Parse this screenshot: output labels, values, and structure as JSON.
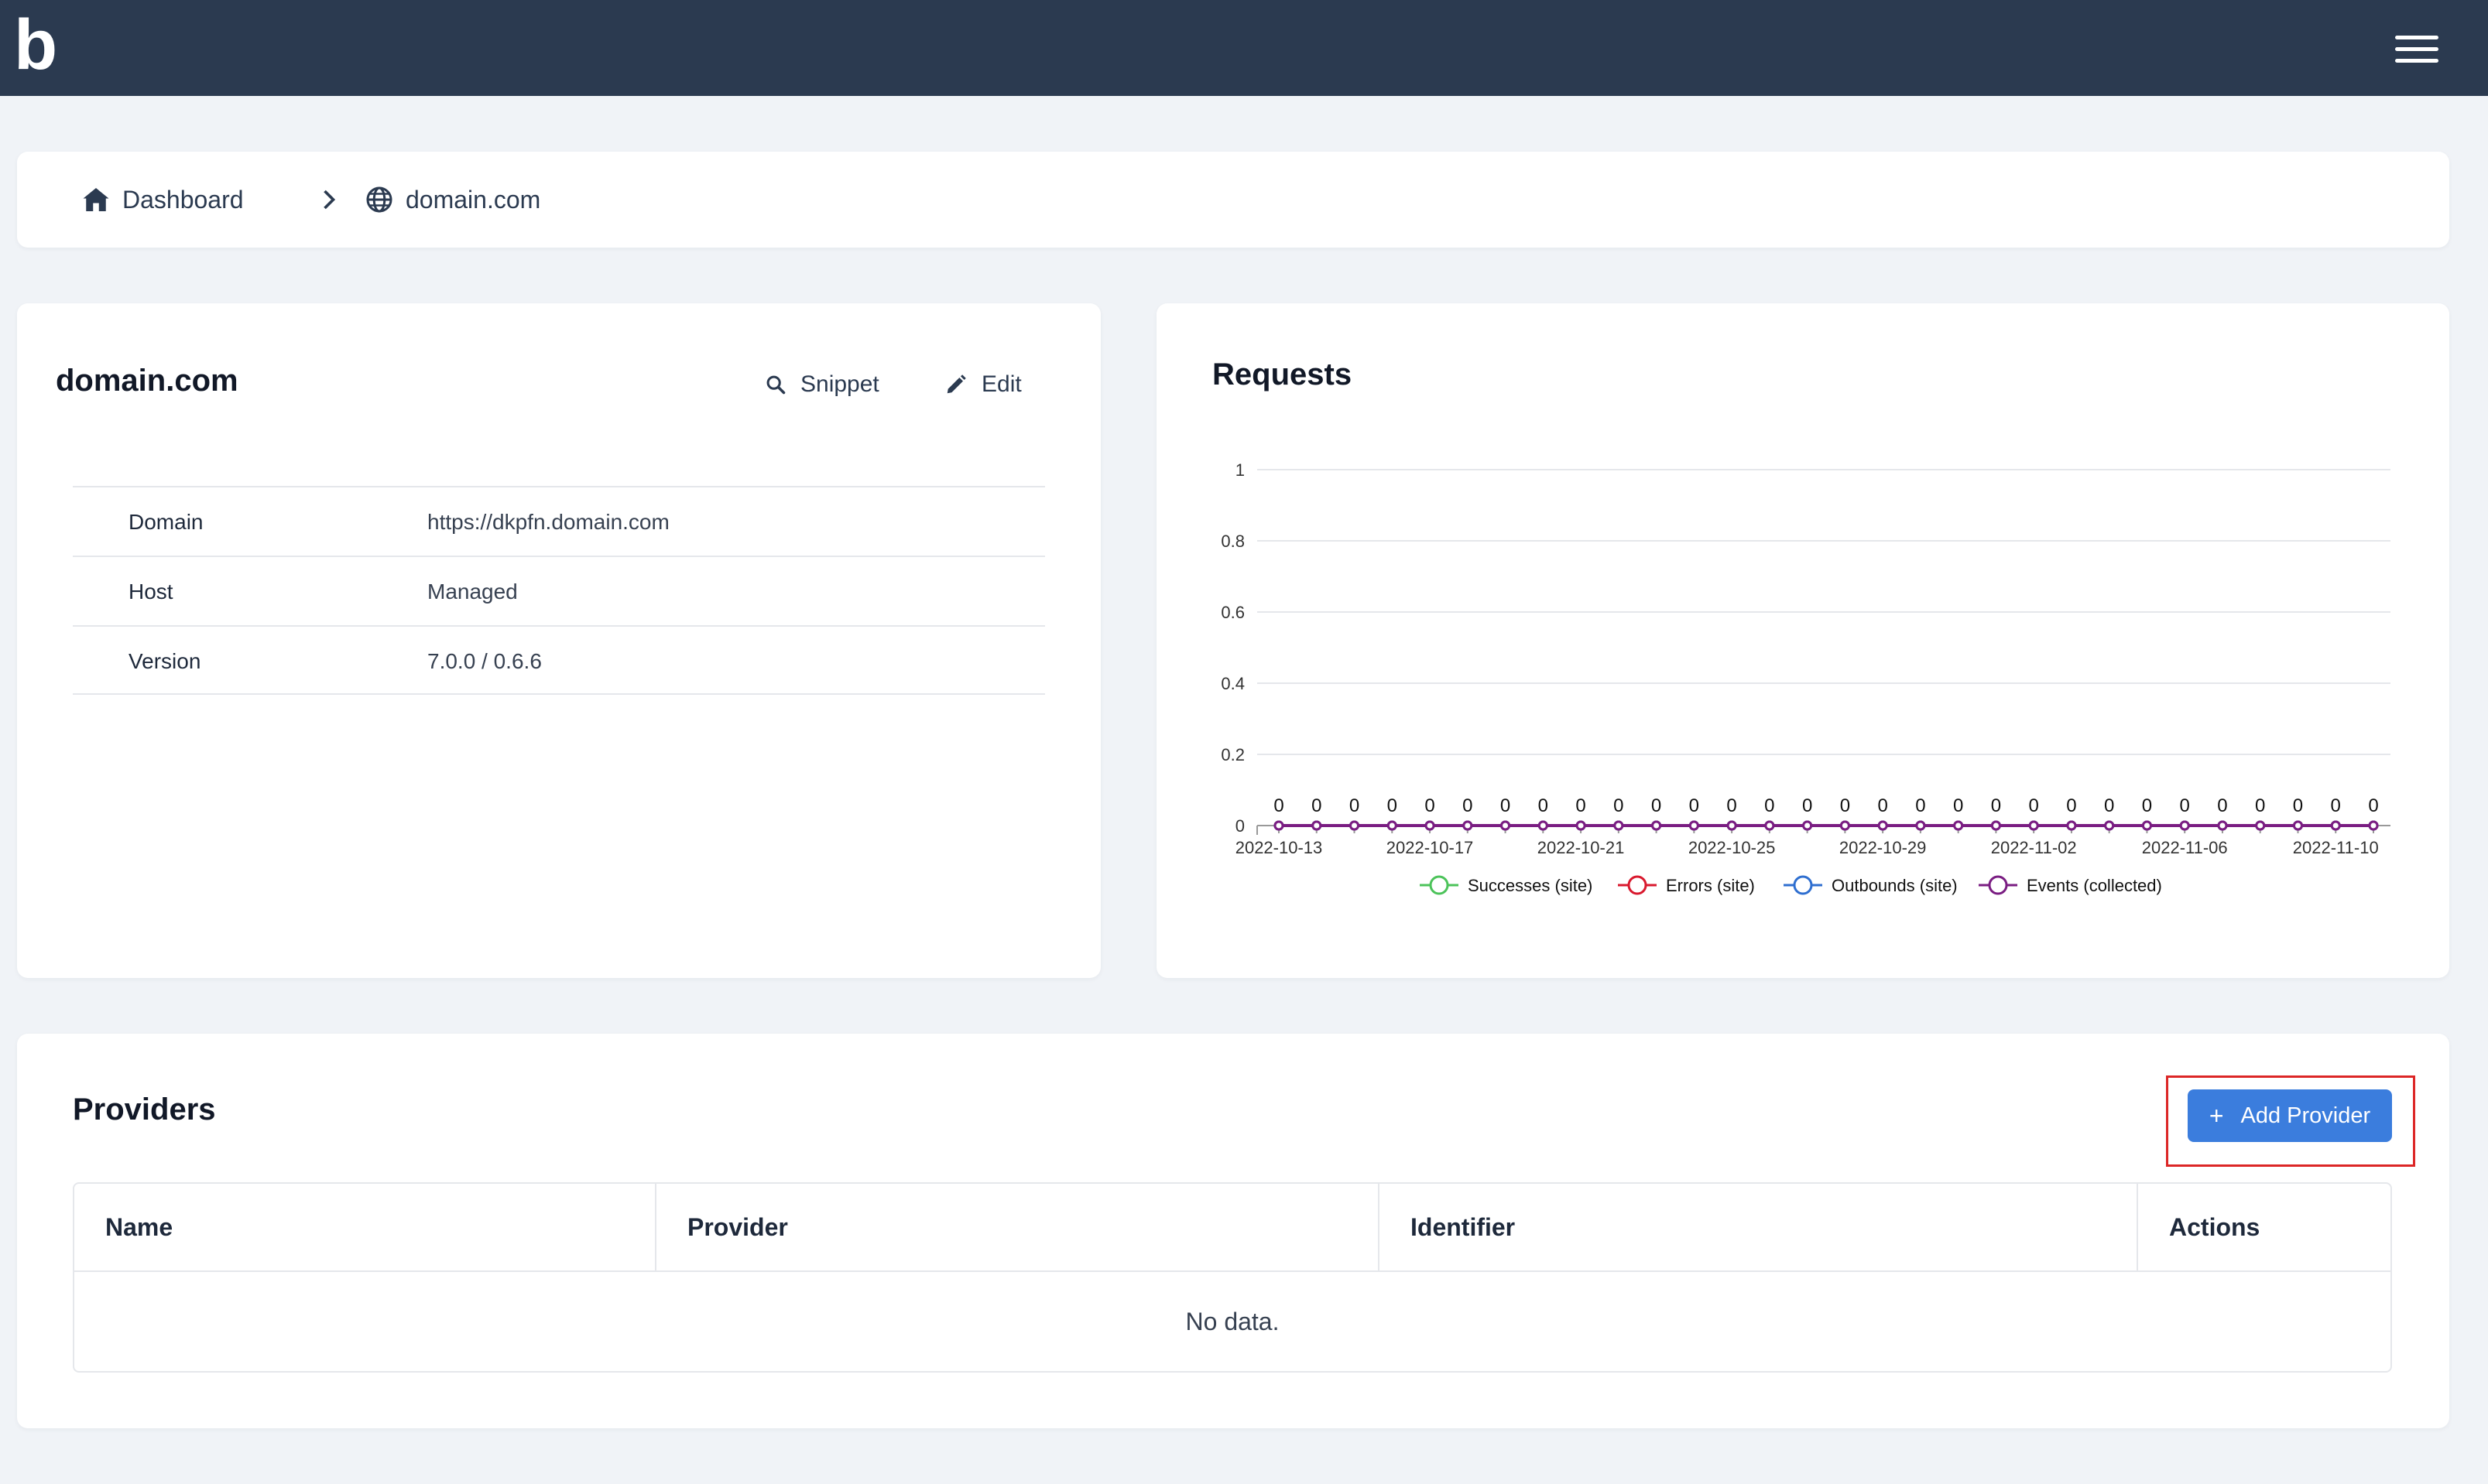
{
  "app": {
    "logo_text": "b",
    "menu_icon": "hamburger-menu-icon"
  },
  "breadcrumb": {
    "items": [
      {
        "label": "Dashboard",
        "icon": "home-icon"
      },
      {
        "label": "domain.com",
        "icon": "globe-icon"
      }
    ],
    "separator_icon": "chevron-right-icon"
  },
  "site": {
    "title": "domain.com",
    "actions": {
      "snippet_label": "Snippet",
      "edit_label": "Edit"
    },
    "rows": [
      {
        "label": "Domain",
        "value": "https://dkpfn.domain.com"
      },
      {
        "label": "Host",
        "value": "Managed"
      },
      {
        "label": "Version",
        "value": "7.0.0 / 0.6.6"
      }
    ]
  },
  "requests": {
    "title": "Requests",
    "chart_data": {
      "type": "line",
      "x": [
        "2022-10-13",
        "2022-10-14",
        "2022-10-15",
        "2022-10-16",
        "2022-10-17",
        "2022-10-18",
        "2022-10-19",
        "2022-10-20",
        "2022-10-21",
        "2022-10-22",
        "2022-10-23",
        "2022-10-24",
        "2022-10-25",
        "2022-10-26",
        "2022-10-27",
        "2022-10-28",
        "2022-10-29",
        "2022-10-30",
        "2022-10-31",
        "2022-11-01",
        "2022-11-02",
        "2022-11-03",
        "2022-11-04",
        "2022-11-05",
        "2022-11-06",
        "2022-11-07",
        "2022-11-08",
        "2022-11-09",
        "2022-11-10",
        "2022-11-11"
      ],
      "x_tick_labels": [
        "2022-10-13",
        "2022-10-17",
        "2022-10-21",
        "2022-10-25",
        "2022-10-29",
        "2022-11-02",
        "2022-11-06",
        "2022-11-10"
      ],
      "y_ticks": [
        "0",
        "0.2",
        "0.4",
        "0.6",
        "0.8",
        "1"
      ],
      "ylim": [
        0,
        1
      ],
      "grid": true,
      "legend_position": "bottom",
      "series": [
        {
          "name": "Successes (site)",
          "color": "#4cc35a",
          "values": [
            0,
            0,
            0,
            0,
            0,
            0,
            0,
            0,
            0,
            0,
            0,
            0,
            0,
            0,
            0,
            0,
            0,
            0,
            0,
            0,
            0,
            0,
            0,
            0,
            0,
            0,
            0,
            0,
            0,
            0
          ]
        },
        {
          "name": "Errors (site)",
          "color": "#d9192e",
          "values": [
            0,
            0,
            0,
            0,
            0,
            0,
            0,
            0,
            0,
            0,
            0,
            0,
            0,
            0,
            0,
            0,
            0,
            0,
            0,
            0,
            0,
            0,
            0,
            0,
            0,
            0,
            0,
            0,
            0,
            0
          ]
        },
        {
          "name": "Outbounds (site)",
          "color": "#2f6fd0",
          "values": [
            0,
            0,
            0,
            0,
            0,
            0,
            0,
            0,
            0,
            0,
            0,
            0,
            0,
            0,
            0,
            0,
            0,
            0,
            0,
            0,
            0,
            0,
            0,
            0,
            0,
            0,
            0,
            0,
            0,
            0
          ]
        },
        {
          "name": "Events (collected)",
          "color": "#7a1d82",
          "values": [
            0,
            0,
            0,
            0,
            0,
            0,
            0,
            0,
            0,
            0,
            0,
            0,
            0,
            0,
            0,
            0,
            0,
            0,
            0,
            0,
            0,
            0,
            0,
            0,
            0,
            0,
            0,
            0,
            0,
            0
          ]
        }
      ]
    }
  },
  "providers": {
    "title": "Providers",
    "add_button_label": "Add Provider",
    "add_icon": "plus-icon",
    "columns": [
      "Name",
      "Provider",
      "Identifier",
      "Actions"
    ],
    "empty_text": "No data."
  }
}
